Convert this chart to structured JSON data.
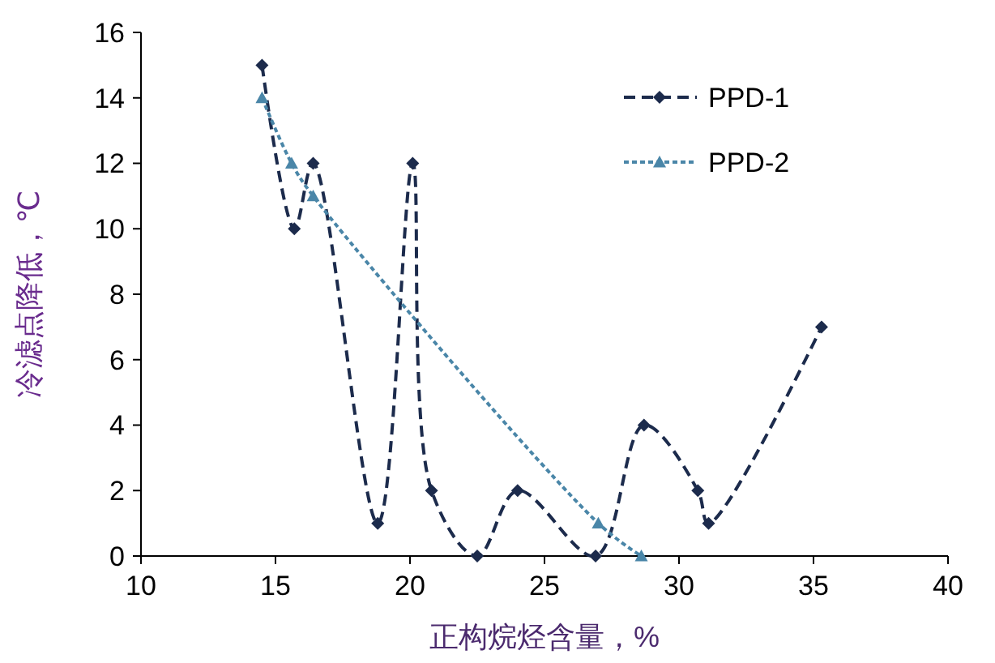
{
  "chart_data": {
    "type": "line",
    "xlabel": "正构烷烃含量，%",
    "ylabel": "冷滤点降低，℃",
    "xlim": [
      10,
      40
    ],
    "xticks": [
      10,
      15,
      20,
      25,
      30,
      35,
      40
    ],
    "ylim": [
      0,
      16
    ],
    "yticks": [
      0,
      2,
      4,
      6,
      8,
      10,
      12,
      14,
      16
    ],
    "legend": "top right",
    "grid": false,
    "series": [
      {
        "name": "PPD-1",
        "color": "#1c2b4c",
        "marker": "diamond",
        "line_style": "dashed",
        "x": [
          14.5,
          15.7,
          16.4,
          18.8,
          20.1,
          20.8,
          22.5,
          24,
          26.9,
          28.7,
          30.7,
          31.1,
          35.3
        ],
        "values": [
          15,
          10,
          12,
          1,
          12,
          2,
          0,
          2,
          0,
          4,
          2,
          1,
          7
        ]
      },
      {
        "name": "PPD-2",
        "color": "#4a86a8",
        "marker": "triangle",
        "line_style": "dotted",
        "x": [
          14.5,
          15.6,
          16.4,
          27,
          28.6
        ],
        "values": [
          14,
          12,
          11,
          1,
          0
        ]
      }
    ]
  }
}
